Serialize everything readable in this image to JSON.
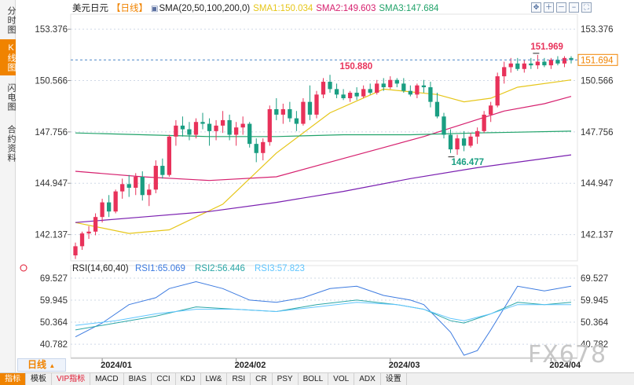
{
  "sidebar": {
    "tabs": [
      {
        "label": "分时图",
        "active": false
      },
      {
        "label": "K线图",
        "active": true
      },
      {
        "label": "闪电图",
        "active": false
      },
      {
        "label": "合约资料",
        "active": false
      }
    ]
  },
  "header": {
    "symbol": "美元日元",
    "period_label": "【日线】",
    "sma_params": "SMA(20,50,100,200,0)",
    "sma1": "SMA1:150.034",
    "sma2": "SMA2:149.603",
    "sma3": "SMA3:147.684"
  },
  "toolbar": {
    "icons": [
      "move-icon",
      "zoom-in-icon",
      "zoom-out-icon",
      "minus-icon",
      "expand-icon"
    ],
    "glyphs": [
      "✥",
      "＋",
      "－",
      "−",
      "⛶"
    ]
  },
  "rsi_header": {
    "params": "RSI(14,60,40)",
    "rsi1": "RSI1:65.069",
    "rsi2": "RSI2:56.446",
    "rsi3": "RSI3:57.823"
  },
  "colors": {
    "up": "#e8325a",
    "down": "#1a9e82",
    "sma1": "#e6c619",
    "sma2": "#d6206e",
    "sma3": "#21a36a",
    "sma4": "#7a1fb0",
    "rsi1": "#3d7be0",
    "rsi2": "#2aa6a6",
    "rsi3": "#5fc5ff",
    "last_price": "#f08300"
  },
  "chart_data": [
    {
      "type": "candlestick",
      "title": "美元日元 日线",
      "ylim": [
        140.7,
        154.2
      ],
      "y_ticks": [
        "153.376",
        "150.566",
        "147.756",
        "144.947",
        "142.137"
      ],
      "x_ticks": [
        "2024/01",
        "2024/02",
        "2024/03",
        "2024/04"
      ],
      "last_price": "151.694",
      "annotations": {
        "high_1": "150.880",
        "high_2": "151.969",
        "low_1": "146.477"
      },
      "ohlc": [
        [
          141.0,
          141.7,
          140.8,
          141.5
        ],
        [
          141.5,
          142.3,
          141.3,
          142.2
        ],
        [
          142.2,
          142.6,
          141.9,
          142.3
        ],
        [
          142.3,
          143.3,
          142.1,
          143.1
        ],
        [
          143.1,
          144.1,
          142.8,
          143.9
        ],
        [
          143.9,
          144.3,
          143.1,
          143.4
        ],
        [
          143.4,
          144.6,
          143.3,
          144.5
        ],
        [
          144.5,
          145.2,
          144.1,
          144.9
        ],
        [
          144.9,
          145.4,
          144.2,
          144.7
        ],
        [
          144.7,
          145.5,
          144.3,
          145.3
        ],
        [
          145.3,
          145.6,
          144.0,
          144.3
        ],
        [
          144.3,
          144.9,
          143.7,
          144.6
        ],
        [
          144.6,
          146.2,
          144.4,
          145.9
        ],
        [
          145.9,
          146.3,
          145.2,
          145.4
        ],
        [
          145.4,
          147.6,
          145.3,
          147.5
        ],
        [
          147.5,
          148.4,
          147.0,
          148.1
        ],
        [
          148.1,
          148.6,
          147.5,
          147.9
        ],
        [
          147.9,
          148.3,
          147.3,
          147.6
        ],
        [
          147.6,
          148.5,
          147.4,
          148.3
        ],
        [
          148.3,
          148.8,
          147.9,
          148.2
        ],
        [
          148.2,
          148.5,
          147.0,
          147.8
        ],
        [
          147.8,
          148.4,
          147.3,
          148.1
        ],
        [
          148.1,
          148.9,
          147.7,
          148.4
        ],
        [
          148.4,
          148.7,
          147.3,
          147.6
        ],
        [
          147.6,
          148.3,
          147.0,
          148.0
        ],
        [
          148.0,
          148.6,
          147.6,
          148.2
        ],
        [
          148.2,
          148.3,
          146.9,
          147.1
        ],
        [
          147.1,
          147.4,
          146.1,
          146.6
        ],
        [
          146.6,
          147.4,
          146.2,
          147.2
        ],
        [
          147.2,
          149.2,
          147.0,
          149.0
        ],
        [
          149.0,
          149.6,
          148.4,
          148.7
        ],
        [
          148.7,
          149.3,
          148.2,
          149.0
        ],
        [
          149.0,
          149.4,
          148.3,
          148.5
        ],
        [
          148.5,
          148.9,
          147.8,
          148.2
        ],
        [
          148.2,
          149.6,
          148.1,
          149.4
        ],
        [
          149.4,
          150.3,
          148.4,
          148.7
        ],
        [
          148.7,
          150.0,
          148.5,
          149.8
        ],
        [
          149.8,
          150.7,
          149.6,
          150.5
        ],
        [
          150.5,
          150.88,
          149.9,
          150.1
        ],
        [
          150.1,
          150.4,
          149.6,
          149.8
        ],
        [
          149.8,
          150.1,
          149.5,
          149.6
        ],
        [
          149.6,
          150.0,
          149.4,
          149.9
        ],
        [
          149.9,
          150.2,
          149.5,
          149.7
        ],
        [
          149.7,
          150.3,
          149.6,
          150.1
        ],
        [
          150.1,
          150.4,
          149.8,
          149.9
        ],
        [
          149.9,
          150.6,
          149.8,
          150.4
        ],
        [
          150.4,
          150.7,
          150.0,
          150.2
        ],
        [
          150.2,
          150.8,
          150.1,
          150.6
        ],
        [
          150.6,
          150.7,
          150.2,
          150.4
        ],
        [
          150.4,
          150.7,
          149.9,
          150.0
        ],
        [
          150.0,
          150.3,
          149.7,
          149.8
        ],
        [
          149.8,
          150.4,
          149.6,
          150.3
        ],
        [
          150.3,
          150.6,
          149.9,
          150.2
        ],
        [
          150.2,
          150.5,
          149.1,
          149.4
        ],
        [
          149.4,
          149.9,
          148.5,
          148.6
        ],
        [
          148.6,
          148.8,
          147.4,
          147.6
        ],
        [
          147.6,
          147.9,
          146.6,
          146.8
        ],
        [
          146.8,
          147.6,
          146.5,
          147.4
        ],
        [
          147.4,
          147.8,
          146.7,
          147.0
        ],
        [
          147.0,
          147.7,
          146.9,
          147.5
        ],
        [
          147.5,
          148.0,
          147.1,
          147.8
        ],
        [
          147.8,
          148.9,
          147.7,
          148.7
        ],
        [
          148.7,
          149.4,
          148.3,
          149.2
        ],
        [
          149.2,
          151.0,
          149.1,
          150.8
        ],
        [
          150.8,
          151.6,
          150.4,
          151.3
        ],
        [
          151.3,
          151.8,
          151.0,
          151.5
        ],
        [
          151.5,
          151.8,
          151.1,
          151.2
        ],
        [
          151.2,
          151.7,
          151.0,
          151.5
        ],
        [
          151.5,
          151.8,
          151.2,
          151.4
        ],
        [
          151.4,
          151.97,
          151.2,
          151.6
        ],
        [
          151.6,
          151.8,
          151.3,
          151.4
        ],
        [
          151.4,
          151.8,
          151.2,
          151.7
        ],
        [
          151.7,
          151.9,
          151.4,
          151.5
        ],
        [
          151.5,
          151.9,
          151.3,
          151.8
        ],
        [
          151.8,
          151.9,
          151.5,
          151.69
        ]
      ],
      "series": [
        {
          "name": "SMA1",
          "x": [
            0,
            8,
            14,
            22,
            30,
            38,
            46,
            54,
            58,
            62,
            66,
            74
          ],
          "values": [
            142.8,
            142.2,
            142.4,
            143.8,
            146.6,
            148.8,
            150.1,
            149.8,
            149.4,
            149.6,
            150.2,
            150.6
          ]
        },
        {
          "name": "SMA2",
          "x": [
            0,
            10,
            20,
            30,
            40,
            46,
            52,
            58,
            64,
            70,
            74
          ],
          "values": [
            145.6,
            145.3,
            145.1,
            145.3,
            146.3,
            146.9,
            147.5,
            148.2,
            148.9,
            149.3,
            149.7
          ]
        },
        {
          "name": "SMA3",
          "x": [
            0,
            10,
            20,
            30,
            40,
            50,
            60,
            74
          ],
          "values": [
            147.7,
            147.6,
            147.5,
            147.5,
            147.6,
            147.6,
            147.7,
            147.8
          ]
        },
        {
          "name": "SMA4",
          "x": [
            0,
            10,
            20,
            30,
            40,
            50,
            60,
            74
          ],
          "values": [
            142.8,
            143.1,
            143.4,
            143.9,
            144.5,
            145.2,
            145.8,
            146.5
          ]
        }
      ]
    },
    {
      "type": "line",
      "title": "RSI(14,60,40)",
      "ylim": [
        35,
        75
      ],
      "y_ticks": [
        "69.527",
        "59.945",
        "50.364",
        "40.782"
      ],
      "series": [
        {
          "name": "RSI1",
          "x": [
            0,
            4,
            8,
            12,
            14,
            18,
            22,
            26,
            30,
            34,
            38,
            42,
            46,
            50,
            52,
            56,
            58,
            60,
            62,
            66,
            70,
            74
          ],
          "values": [
            44,
            50,
            58,
            61,
            65,
            68,
            65,
            60,
            59,
            61,
            65,
            66,
            62,
            60,
            58,
            46,
            36,
            38,
            47,
            66,
            64,
            66
          ]
        },
        {
          "name": "RSI2",
          "x": [
            0,
            6,
            12,
            18,
            24,
            30,
            36,
            42,
            48,
            52,
            56,
            58,
            62,
            66,
            70,
            74
          ],
          "values": [
            47,
            50,
            53,
            57,
            56,
            55,
            58,
            60,
            58,
            56,
            51,
            50,
            54,
            59,
            58,
            59
          ]
        },
        {
          "name": "RSI3",
          "x": [
            0,
            6,
            12,
            18,
            24,
            30,
            36,
            42,
            48,
            52,
            56,
            58,
            62,
            66,
            70,
            74
          ],
          "values": [
            49,
            51,
            54,
            56,
            56,
            55,
            57,
            59,
            58,
            56,
            52,
            51,
            54,
            58,
            58,
            58
          ]
        }
      ]
    }
  ],
  "period_select": "日线",
  "bottom_tabs": [
    {
      "label": "指标",
      "active": true
    },
    {
      "label": "模板"
    },
    {
      "label": "VIP指标",
      "vip": true
    },
    {
      "label": "MACD"
    },
    {
      "label": "BIAS"
    },
    {
      "label": "CCI"
    },
    {
      "label": "KDJ"
    },
    {
      "label": "LW&"
    },
    {
      "label": "RSI"
    },
    {
      "label": "CR"
    },
    {
      "label": "PSY"
    },
    {
      "label": "BOLL"
    },
    {
      "label": "VOL"
    },
    {
      "label": "ADX"
    },
    {
      "label": "设置"
    }
  ],
  "watermark": "FX678"
}
